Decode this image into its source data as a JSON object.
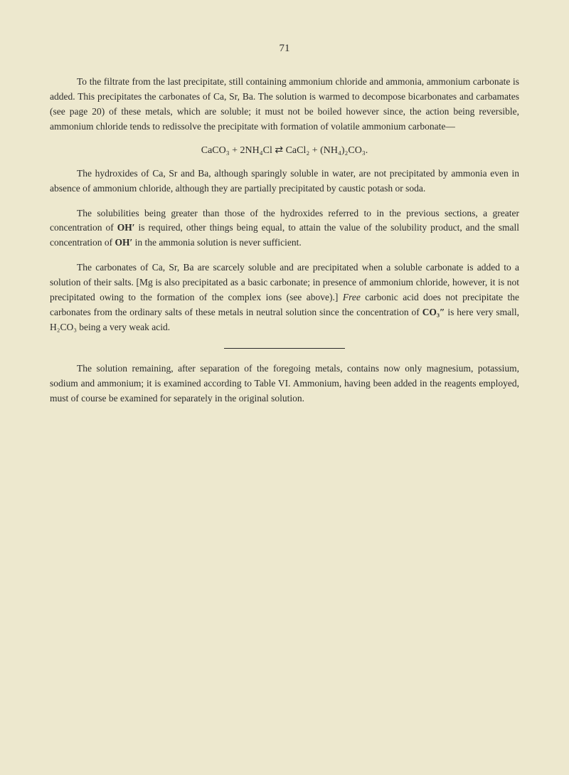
{
  "page_number": "71",
  "paragraphs": {
    "p1_part1": "To the filtrate from the last precipitate, still containing ammonium chloride and ammonia, ammonium carbonate is added. This precipitates the carbonates of Ca, Sr, Ba. The solution is warmed to decompose bicarbonates and carbamates (see page 20) of these metals, which are soluble; it must not be boiled however since, the action being reversible, ammonium chloride tends to redissolve the precipitate with formation of volatile ammonium carbonate—",
    "equation": "CaCO₃ + 2NH₄Cl ⇄ CaCl₂ + (NH₄)₂CO₃.",
    "p2": "The hydroxides of Ca, Sr and Ba, although sparingly soluble in water, are not precipitated by ammonia even in absence of ammonium chloride, although they are partially precipitated by caustic potash or soda.",
    "p3_a": "The solubilities being greater than those of the hydroxides referred to in the previous sections, a greater concentration of ",
    "p3_oh1": "OH′",
    "p3_b": " is required, other things being equal, to attain the value of the solubility product, and the small concentration of ",
    "p3_oh2": "OH′",
    "p3_c": " in the ammonia solution is never sufficient.",
    "p4_a": "The carbonates of Ca, Sr, Ba are scarcely soluble and are precipitated when a soluble carbonate is added to a solution of their salts. [Mg is also precipitated as a basic carbonate; in presence of ammonium chloride, however, it is not precipitated owing to the formation of the complex ions (see above).] ",
    "p4_free": "Free",
    "p4_b": " carbonic acid does not precipitate the carbonates from the ordinary salts of these metals in neutral solution since the concentration of ",
    "p4_co3": "CO₃″",
    "p4_c": " is here very small, H₂CO₃ being a very weak acid.",
    "p5": "The solution remaining, after separation of the foregoing metals, contains now only magnesium, potassium, sodium and ammonium; it is examined according to Table VI. Ammonium, having been added in the reagents employed, must of course be examined for separately in the original solution."
  },
  "colors": {
    "background": "#ede8ce",
    "text": "#2a2a2a"
  },
  "typography": {
    "body_fontsize": 13.5,
    "page_number_fontsize": 15,
    "line_height": 1.55,
    "text_indent": 38
  }
}
